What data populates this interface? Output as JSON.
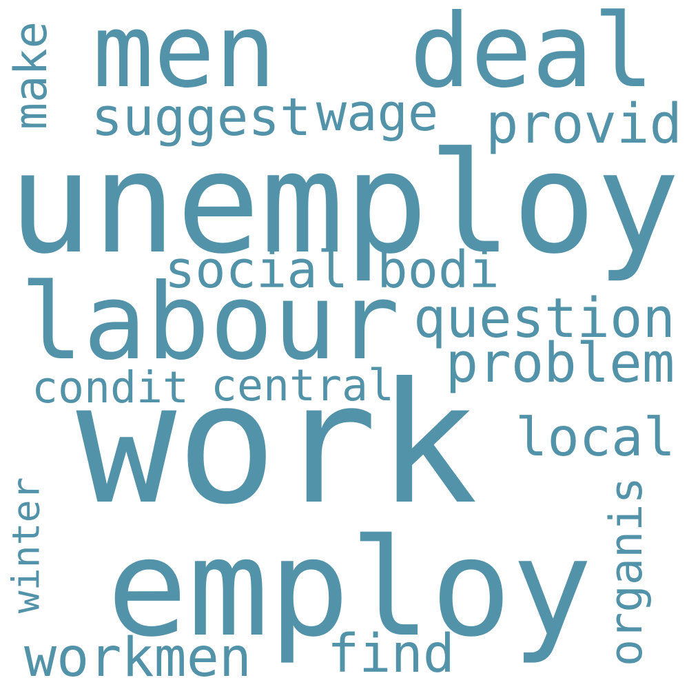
{
  "colors": {
    "background": "#ffffff",
    "word": "#5393aa"
  },
  "words": [
    {
      "text": "work",
      "orientation": "horizontal"
    },
    {
      "text": "unemploy",
      "orientation": "horizontal"
    },
    {
      "text": "employ",
      "orientation": "horizontal"
    },
    {
      "text": "labour",
      "orientation": "horizontal"
    },
    {
      "text": "men",
      "orientation": "horizontal"
    },
    {
      "text": "deal",
      "orientation": "horizontal"
    },
    {
      "text": "problem",
      "orientation": "horizontal"
    },
    {
      "text": "question",
      "orientation": "horizontal"
    },
    {
      "text": "workmen",
      "orientation": "horizontal"
    },
    {
      "text": "find",
      "orientation": "horizontal"
    },
    {
      "text": "local",
      "orientation": "horizontal"
    },
    {
      "text": "provid",
      "orientation": "horizontal"
    },
    {
      "text": "suggest",
      "orientation": "horizontal"
    },
    {
      "text": "wage",
      "orientation": "horizontal"
    },
    {
      "text": "social",
      "orientation": "horizontal"
    },
    {
      "text": "bodi",
      "orientation": "horizontal"
    },
    {
      "text": "central",
      "orientation": "horizontal"
    },
    {
      "text": "condit",
      "orientation": "horizontal"
    },
    {
      "text": "make",
      "orientation": "vertical"
    },
    {
      "text": "winter",
      "orientation": "vertical"
    },
    {
      "text": "organis",
      "orientation": "vertical"
    }
  ]
}
